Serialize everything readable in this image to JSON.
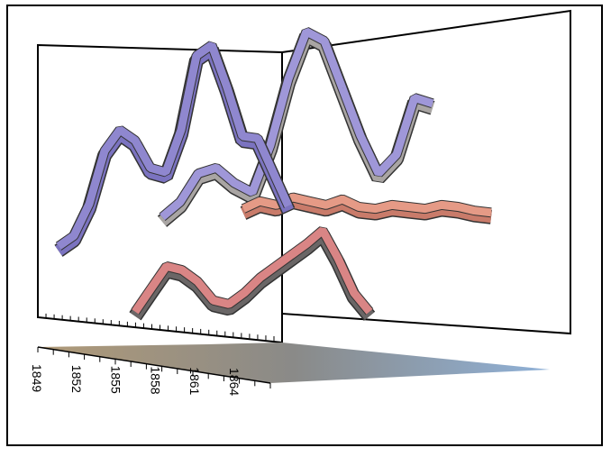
{
  "chart_data": {
    "type": "ribbon",
    "categories": [
      "1849",
      null,
      null,
      "1852",
      null,
      null,
      "1855",
      null,
      null,
      "1858",
      null,
      null,
      "1861",
      null,
      null,
      "1864"
    ],
    "ylim": [
      0,
      100
    ],
    "series": [
      {
        "color": "#9f97d8",
        "values": [
          2,
          10,
          25,
          28,
          20,
          15,
          40,
          75,
          100,
          95,
          70,
          45,
          25,
          35,
          65,
          62
        ]
      },
      {
        "color": "#e59a86",
        "values": [
          4,
          8,
          6,
          10,
          8,
          6,
          9,
          5,
          4,
          6,
          5,
          4,
          6,
          5,
          3,
          2
        ]
      },
      {
        "color": "#d98585",
        "values": [
          2,
          14,
          26,
          24,
          18,
          8,
          6,
          12,
          20,
          26,
          32,
          38,
          45,
          30,
          12,
          2
        ]
      },
      {
        "color": "#8f87cf",
        "values": [
          5,
          10,
          25,
          50,
          60,
          55,
          42,
          40,
          60,
          95,
          100,
          80,
          57,
          56,
          40,
          24
        ]
      }
    ]
  }
}
